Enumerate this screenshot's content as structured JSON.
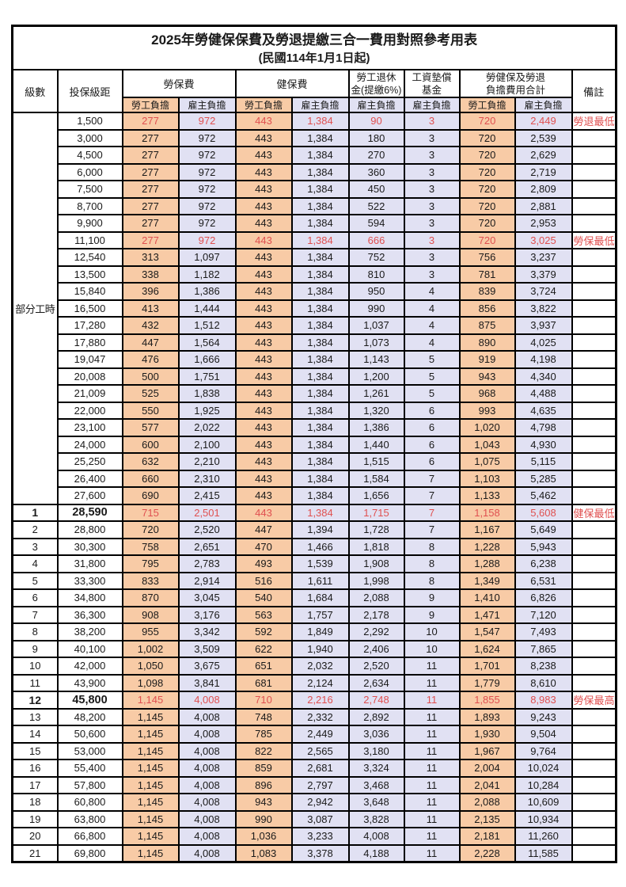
{
  "title": "2025年勞健保保費及勞退提繳三合一費用對照參考用表",
  "subtitle": "(民國114年1月1日起)",
  "colors": {
    "employee_bg": "#f8cba6",
    "employer_bg": "#e1e1f3",
    "highlight_red": "#e05050",
    "border": "#000000"
  },
  "header": {
    "level": "級數",
    "bracket": "投保級距",
    "labor_ins": "勞保費",
    "health_ins": "健保費",
    "pension_line1": "勞工退休",
    "pension_line2": "金(提繳6%)",
    "wage_fund_line1": "工資墊償",
    "wage_fund_line2": "基金",
    "total_line1": "勞健保及勞退",
    "total_line2": "負擔費用合計",
    "remark": "備註",
    "employee": "勞工負擔",
    "employer": "雇主負擔"
  },
  "part_time_label": "部分工時",
  "rows": [
    {
      "level": "",
      "bracket": "1,500",
      "values": [
        "277",
        "972",
        "443",
        "1,384",
        "90",
        "3",
        "720",
        "2,449"
      ],
      "red": true,
      "remark": "勞退最低級距"
    },
    {
      "level": "",
      "bracket": "3,000",
      "values": [
        "277",
        "972",
        "443",
        "1,384",
        "180",
        "3",
        "720",
        "2,539"
      ]
    },
    {
      "level": "",
      "bracket": "4,500",
      "values": [
        "277",
        "972",
        "443",
        "1,384",
        "270",
        "3",
        "720",
        "2,629"
      ]
    },
    {
      "level": "",
      "bracket": "6,000",
      "values": [
        "277",
        "972",
        "443",
        "1,384",
        "360",
        "3",
        "720",
        "2,719"
      ]
    },
    {
      "level": "",
      "bracket": "7,500",
      "values": [
        "277",
        "972",
        "443",
        "1,384",
        "450",
        "3",
        "720",
        "2,809"
      ]
    },
    {
      "level": "",
      "bracket": "8,700",
      "values": [
        "277",
        "972",
        "443",
        "1,384",
        "522",
        "3",
        "720",
        "2,881"
      ]
    },
    {
      "level": "",
      "bracket": "9,900",
      "values": [
        "277",
        "972",
        "443",
        "1,384",
        "594",
        "3",
        "720",
        "2,953"
      ]
    },
    {
      "level": "",
      "bracket": "11,100",
      "values": [
        "277",
        "972",
        "443",
        "1,384",
        "666",
        "3",
        "720",
        "3,025"
      ],
      "red": true,
      "remark": "勞保最低級距"
    },
    {
      "level": "",
      "bracket": "12,540",
      "values": [
        "313",
        "1,097",
        "443",
        "1,384",
        "752",
        "3",
        "756",
        "3,237"
      ]
    },
    {
      "level": "",
      "bracket": "13,500",
      "values": [
        "338",
        "1,182",
        "443",
        "1,384",
        "810",
        "3",
        "781",
        "3,379"
      ]
    },
    {
      "level": "",
      "bracket": "15,840",
      "values": [
        "396",
        "1,386",
        "443",
        "1,384",
        "950",
        "4",
        "839",
        "3,724"
      ]
    },
    {
      "level": "",
      "bracket": "16,500",
      "values": [
        "413",
        "1,444",
        "443",
        "1,384",
        "990",
        "4",
        "856",
        "3,822"
      ]
    },
    {
      "level": "",
      "bracket": "17,280",
      "values": [
        "432",
        "1,512",
        "443",
        "1,384",
        "1,037",
        "4",
        "875",
        "3,937"
      ]
    },
    {
      "level": "",
      "bracket": "17,880",
      "values": [
        "447",
        "1,564",
        "443",
        "1,384",
        "1,073",
        "4",
        "890",
        "4,025"
      ]
    },
    {
      "level": "",
      "bracket": "19,047",
      "values": [
        "476",
        "1,666",
        "443",
        "1,384",
        "1,143",
        "5",
        "919",
        "4,198"
      ]
    },
    {
      "level": "",
      "bracket": "20,008",
      "values": [
        "500",
        "1,751",
        "443",
        "1,384",
        "1,200",
        "5",
        "943",
        "4,340"
      ]
    },
    {
      "level": "",
      "bracket": "21,009",
      "values": [
        "525",
        "1,838",
        "443",
        "1,384",
        "1,261",
        "5",
        "968",
        "4,488"
      ]
    },
    {
      "level": "",
      "bracket": "22,000",
      "values": [
        "550",
        "1,925",
        "443",
        "1,384",
        "1,320",
        "6",
        "993",
        "4,635"
      ]
    },
    {
      "level": "",
      "bracket": "23,100",
      "values": [
        "577",
        "2,022",
        "443",
        "1,384",
        "1,386",
        "6",
        "1,020",
        "4,798"
      ]
    },
    {
      "level": "",
      "bracket": "24,000",
      "values": [
        "600",
        "2,100",
        "443",
        "1,384",
        "1,440",
        "6",
        "1,043",
        "4,930"
      ]
    },
    {
      "level": "",
      "bracket": "25,250",
      "values": [
        "632",
        "2,210",
        "443",
        "1,384",
        "1,515",
        "6",
        "1,075",
        "5,115"
      ]
    },
    {
      "level": "",
      "bracket": "26,400",
      "values": [
        "660",
        "2,310",
        "443",
        "1,384",
        "1,584",
        "7",
        "1,103",
        "5,285"
      ]
    },
    {
      "level": "",
      "bracket": "27,600",
      "values": [
        "690",
        "2,415",
        "443",
        "1,384",
        "1,656",
        "7",
        "1,133",
        "5,462"
      ]
    },
    {
      "level": "1",
      "bracket": "28,590",
      "values": [
        "715",
        "2,501",
        "443",
        "1,384",
        "1,715",
        "7",
        "1,158",
        "5,608"
      ],
      "red": true,
      "bold": true,
      "remark": "健保最低級距"
    },
    {
      "level": "2",
      "bracket": "28,800",
      "values": [
        "720",
        "2,520",
        "447",
        "1,394",
        "1,728",
        "7",
        "1,167",
        "5,649"
      ]
    },
    {
      "level": "3",
      "bracket": "30,300",
      "values": [
        "758",
        "2,651",
        "470",
        "1,466",
        "1,818",
        "8",
        "1,228",
        "5,943"
      ]
    },
    {
      "level": "4",
      "bracket": "31,800",
      "values": [
        "795",
        "2,783",
        "493",
        "1,539",
        "1,908",
        "8",
        "1,288",
        "6,238"
      ]
    },
    {
      "level": "5",
      "bracket": "33,300",
      "values": [
        "833",
        "2,914",
        "516",
        "1,611",
        "1,998",
        "8",
        "1,349",
        "6,531"
      ]
    },
    {
      "level": "6",
      "bracket": "34,800",
      "values": [
        "870",
        "3,045",
        "540",
        "1,684",
        "2,088",
        "9",
        "1,410",
        "6,826"
      ]
    },
    {
      "level": "7",
      "bracket": "36,300",
      "values": [
        "908",
        "3,176",
        "563",
        "1,757",
        "2,178",
        "9",
        "1,471",
        "7,120"
      ]
    },
    {
      "level": "8",
      "bracket": "38,200",
      "values": [
        "955",
        "3,342",
        "592",
        "1,849",
        "2,292",
        "10",
        "1,547",
        "7,493"
      ]
    },
    {
      "level": "9",
      "bracket": "40,100",
      "values": [
        "1,002",
        "3,509",
        "622",
        "1,940",
        "2,406",
        "10",
        "1,624",
        "7,865"
      ]
    },
    {
      "level": "10",
      "bracket": "42,000",
      "values": [
        "1,050",
        "3,675",
        "651",
        "2,032",
        "2,520",
        "11",
        "1,701",
        "8,238"
      ]
    },
    {
      "level": "11",
      "bracket": "43,900",
      "values": [
        "1,098",
        "3,841",
        "681",
        "2,124",
        "2,634",
        "11",
        "1,779",
        "8,610"
      ]
    },
    {
      "level": "12",
      "bracket": "45,800",
      "values": [
        "1,145",
        "4,008",
        "710",
        "2,216",
        "2,748",
        "11",
        "1,855",
        "8,983"
      ],
      "red": true,
      "bold": true,
      "remark": "勞保最高級距"
    },
    {
      "level": "13",
      "bracket": "48,200",
      "values": [
        "1,145",
        "4,008",
        "748",
        "2,332",
        "2,892",
        "11",
        "1,893",
        "9,243"
      ]
    },
    {
      "level": "14",
      "bracket": "50,600",
      "values": [
        "1,145",
        "4,008",
        "785",
        "2,449",
        "3,036",
        "11",
        "1,930",
        "9,504"
      ]
    },
    {
      "level": "15",
      "bracket": "53,000",
      "values": [
        "1,145",
        "4,008",
        "822",
        "2,565",
        "3,180",
        "11",
        "1,967",
        "9,764"
      ]
    },
    {
      "level": "16",
      "bracket": "55,400",
      "values": [
        "1,145",
        "4,008",
        "859",
        "2,681",
        "3,324",
        "11",
        "2,004",
        "10,024"
      ]
    },
    {
      "level": "17",
      "bracket": "57,800",
      "values": [
        "1,145",
        "4,008",
        "896",
        "2,797",
        "3,468",
        "11",
        "2,041",
        "10,284"
      ]
    },
    {
      "level": "18",
      "bracket": "60,800",
      "values": [
        "1,145",
        "4,008",
        "943",
        "2,942",
        "3,648",
        "11",
        "2,088",
        "10,609"
      ]
    },
    {
      "level": "19",
      "bracket": "63,800",
      "values": [
        "1,145",
        "4,008",
        "990",
        "3,087",
        "3,828",
        "11",
        "2,135",
        "10,934"
      ]
    },
    {
      "level": "20",
      "bracket": "66,800",
      "values": [
        "1,145",
        "4,008",
        "1,036",
        "3,233",
        "4,008",
        "11",
        "2,181",
        "11,260"
      ]
    },
    {
      "level": "21",
      "bracket": "69,800",
      "values": [
        "1,145",
        "4,008",
        "1,083",
        "3,378",
        "4,188",
        "11",
        "2,228",
        "11,585"
      ]
    }
  ]
}
